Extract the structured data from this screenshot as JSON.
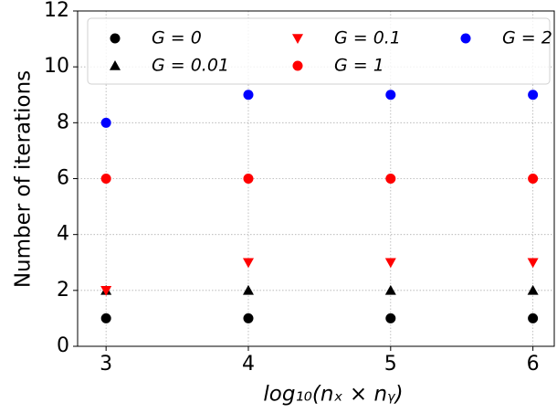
{
  "chart_data": {
    "type": "scatter",
    "x_label": "log₁₀(nₓ × nᵧ)",
    "y_label": "Number of iterations",
    "x": [
      3,
      4,
      5,
      6
    ],
    "series": [
      {
        "name": "G = 0",
        "color": "#000000",
        "marker": "circle",
        "values": [
          1,
          1,
          1,
          1
        ]
      },
      {
        "name": "G = 0.01",
        "color": "#000000",
        "marker": "triangle-up",
        "values": [
          2,
          2,
          2,
          2
        ]
      },
      {
        "name": "G = 0.1",
        "color": "#ff0000",
        "marker": "triangle-down",
        "values": [
          2,
          3,
          3,
          3
        ]
      },
      {
        "name": "G = 1",
        "color": "#ff0000",
        "marker": "circle",
        "values": [
          6,
          6,
          6,
          6
        ]
      },
      {
        "name": "G = 2",
        "color": "#0000ff",
        "marker": "circle",
        "values": [
          8,
          9,
          9,
          9
        ]
      }
    ],
    "xlim": [
      2.8,
      6.15
    ],
    "ylim": [
      0,
      12
    ],
    "xticks": [
      3,
      4,
      5,
      6
    ],
    "yticks": [
      0,
      2,
      4,
      6,
      8,
      10,
      12
    ],
    "grid": true,
    "legend": "top"
  }
}
